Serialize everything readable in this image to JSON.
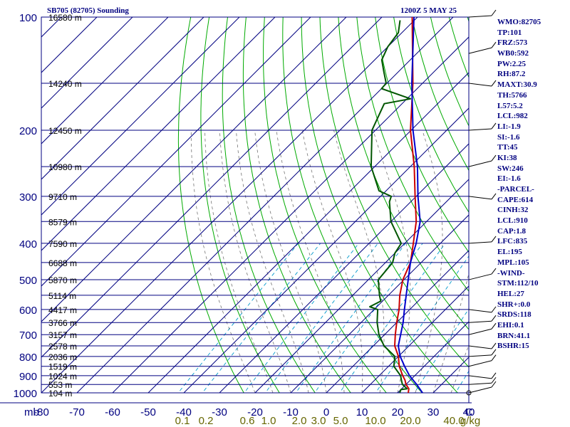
{
  "header": {
    "station": "SB705 (82705) Sounding",
    "time": "1200Z  5 MAY 25"
  },
  "indices": [
    "WMO:82705",
    "TP:101",
    "FRZ:573",
    "WB0:592",
    "PW:2.25",
    "RH:87.2",
    "MAXT:30.9",
    "TH:5766",
    "L57:5.2",
    "LCL:982",
    "LI:-1.9",
    "SI:-1.6",
    "TT:45",
    "KI:38",
    "SW:246",
    "EI:-1.6",
    "-PARCEL-",
    "CAPE:614",
    "CINH:32",
    "LCL:910",
    "CAP:1.8",
    "LFC:835",
    "EL:195",
    "MPL:105",
    "-WIND-",
    "STM:112/10",
    "HEL:27",
    "SHR+:0.0",
    "SRDS:118",
    "EHI:0.1",
    "BRN:41.1",
    "BSHR:15"
  ],
  "colors": {
    "background": "#ffffff",
    "grid": "#000080",
    "dry_adiabat": "#00aa00",
    "moist_adiabat": "#000000",
    "mixing_ratio": "#0099cc",
    "temperature": "#cc0000",
    "dewpoint": "#005500",
    "parcel": "#0000cc",
    "height_labels": "#000000",
    "mixing_ratio_labels": "#666600"
  },
  "chart_data": {
    "type": "line",
    "title": "SB705 (82705) Sounding",
    "xlabel": "",
    "ylabel": "mb",
    "x_axis_units": "deg C",
    "x_ticks": [
      "-80",
      "-70",
      "-60",
      "-50",
      "-40",
      "-30",
      "-20",
      "-10",
      "0",
      "10",
      "20",
      "30",
      "40",
      "C"
    ],
    "y_axis_units": "mb",
    "y_scale": "log",
    "y_ticks": [
      "100",
      "200",
      "300",
      "400",
      "500",
      "600",
      "700",
      "800",
      "900",
      "1000"
    ],
    "xlim": [
      -80,
      40
    ],
    "ylim": [
      1000,
      100
    ],
    "height_labels": [
      {
        "p": 100,
        "label": "16580 m"
      },
      {
        "p": 150,
        "label": "14240 m"
      },
      {
        "p": 200,
        "label": "12450 m"
      },
      {
        "p": 250,
        "label": "10980 m"
      },
      {
        "p": 300,
        "label": "9710 m"
      },
      {
        "p": 350,
        "label": "8579 m"
      },
      {
        "p": 400,
        "label": "7590 m"
      },
      {
        "p": 450,
        "label": "6688 m"
      },
      {
        "p": 500,
        "label": "5870 m"
      },
      {
        "p": 550,
        "label": "5114 m"
      },
      {
        "p": 600,
        "label": "4417 m"
      },
      {
        "p": 650,
        "label": "3766 m"
      },
      {
        "p": 700,
        "label": "3157 m"
      },
      {
        "p": 750,
        "label": "2578 m"
      },
      {
        "p": 800,
        "label": "2036 m"
      },
      {
        "p": 850,
        "label": "1519 m"
      },
      {
        "p": 900,
        "label": "1024 m"
      },
      {
        "p": 950,
        "label": "553 m"
      },
      {
        "p": 1000,
        "label": "104 m"
      }
    ],
    "mixing_ratio_labels": [
      "0.1",
      "0.2",
      "0.6",
      "1.0",
      "2.0",
      "3.0",
      "5.0",
      "10.0",
      "20.0",
      "40.0",
      "g/kg"
    ],
    "dry_adiabats_K": [
      250,
      260,
      270,
      280,
      290,
      300,
      310,
      320,
      330,
      340,
      350,
      360,
      370,
      380,
      390,
      400,
      410,
      420,
      430,
      440,
      450,
      460,
      470,
      480,
      490,
      500,
      510
    ],
    "moist_adiabats_C": [
      -20,
      -15,
      -10,
      -5,
      0,
      5,
      10,
      15,
      20,
      25,
      30,
      35
    ],
    "mixing_ratios_gkg": [
      0.1,
      0.2,
      0.6,
      1.0,
      2.0,
      3.0,
      5.0,
      10.0,
      20.0,
      40.0
    ],
    "series": [
      {
        "name": "Temperature",
        "color": "#cc0000",
        "points": [
          [
            1000,
            23.0
          ],
          [
            975,
            22.0
          ],
          [
            950,
            20.0
          ],
          [
            925,
            18.5
          ],
          [
            900,
            16.6
          ],
          [
            850,
            13.0
          ],
          [
            800,
            10.0
          ],
          [
            750,
            6.0
          ],
          [
            700,
            3.0
          ],
          [
            650,
            0.0
          ],
          [
            600,
            -3.0
          ],
          [
            550,
            -6.8
          ],
          [
            500,
            -10.3
          ],
          [
            450,
            -13.0
          ],
          [
            400,
            -17.6
          ],
          [
            350,
            -22.9
          ],
          [
            300,
            -30.3
          ],
          [
            250,
            -38.9
          ],
          [
            200,
            -50.2
          ],
          [
            150,
            -62.7
          ],
          [
            100,
            -81.5
          ]
        ]
      },
      {
        "name": "Dewpoint",
        "color": "#005500",
        "points": [
          [
            1000,
            20.6
          ],
          [
            980,
            20.0
          ],
          [
            975,
            21.5
          ],
          [
            950,
            19.0
          ],
          [
            925,
            17.5
          ],
          [
            900,
            16.0
          ],
          [
            850,
            11.5
          ],
          [
            800,
            9.0
          ],
          [
            750,
            3.0
          ],
          [
            700,
            -1.6
          ],
          [
            650,
            -5.5
          ],
          [
            600,
            -9.0
          ],
          [
            590,
            -12.0
          ],
          [
            570,
            -10.5
          ],
          [
            550,
            -12.5
          ],
          [
            500,
            -17.2
          ],
          [
            450,
            -18.0
          ],
          [
            425,
            -20.0
          ],
          [
            400,
            -21.0
          ],
          [
            350,
            -30.0
          ],
          [
            310,
            -36.0
          ],
          [
            300,
            -37.0
          ],
          [
            290,
            -42.0
          ],
          [
            250,
            -51.0
          ],
          [
            200,
            -61.0
          ],
          [
            170,
            -65.0
          ],
          [
            165,
            -59.0
          ],
          [
            155,
            -70.0
          ],
          [
            150,
            -70.2
          ],
          [
            140,
            -74.0
          ],
          [
            130,
            -78.0
          ],
          [
            120,
            -80.0
          ],
          [
            110,
            -81.0
          ],
          [
            102,
            -84.0
          ]
        ]
      },
      {
        "name": "Parcel",
        "color": "#0000cc",
        "points": [
          [
            1000,
            27.0
          ],
          [
            950,
            23.0
          ],
          [
            900,
            18.5
          ],
          [
            850,
            14.5
          ],
          [
            800,
            10.5
          ],
          [
            750,
            7.0
          ],
          [
            700,
            4.5
          ],
          [
            650,
            1.8
          ],
          [
            600,
            -1.5
          ],
          [
            550,
            -5.0
          ],
          [
            500,
            -8.8
          ],
          [
            450,
            -13.0
          ],
          [
            400,
            -16.8
          ],
          [
            350,
            -21.8
          ],
          [
            300,
            -29.5
          ],
          [
            250,
            -38.0
          ],
          [
            200,
            -49.5
          ],
          [
            150,
            -63.0
          ],
          [
            100,
            -81.0
          ]
        ]
      }
    ],
    "wind_barbs": [
      {
        "p": 1000
      },
      {
        "p": 950
      },
      {
        "p": 900
      },
      {
        "p": 850
      },
      {
        "p": 800
      },
      {
        "p": 750
      },
      {
        "p": 700
      },
      {
        "p": 650
      },
      {
        "p": 600
      },
      {
        "p": 500
      },
      {
        "p": 400
      },
      {
        "p": 300
      },
      {
        "p": 250
      },
      {
        "p": 200
      },
      {
        "p": 150
      },
      {
        "p": 125
      },
      {
        "p": 100
      }
    ],
    "grid": true
  }
}
